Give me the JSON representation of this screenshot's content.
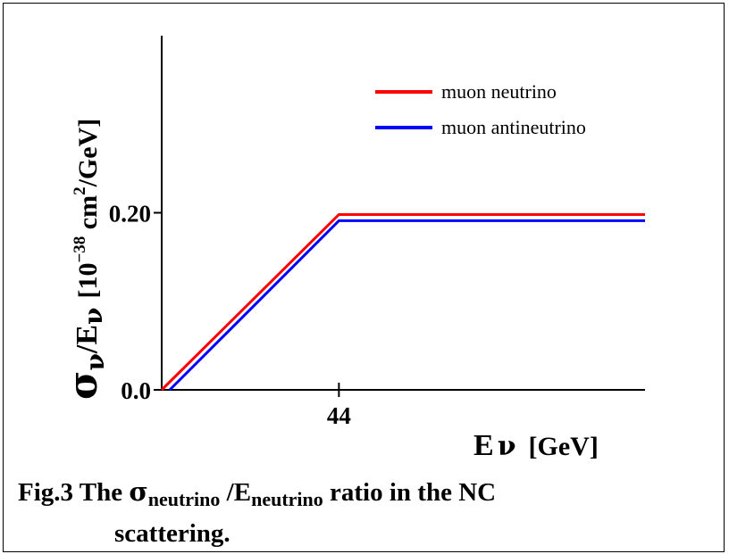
{
  "chart_data": {
    "type": "line",
    "xlabel": "E",
    "xlabel_symbol": "ν",
    "xlabel_unit": "[GeV]",
    "ylabel_sigma": "σ",
    "ylabel_nu": "ν",
    "ylabel_slash": "/E",
    "ylabel_unit": "[10",
    "ylabel_exp1": "−38",
    "ylabel_mid": " cm",
    "ylabel_exp2": "2",
    "ylabel_end": "/GeV]",
    "x_ticks": [
      {
        "value": 44,
        "label": "44"
      }
    ],
    "y_ticks": [
      {
        "value": 0.0,
        "label": "0.0"
      },
      {
        "value": 0.2,
        "label": "0.20"
      }
    ],
    "xlim": [
      0,
      120
    ],
    "ylim": [
      0,
      0.4
    ],
    "grid": false,
    "legend_position": "top-right",
    "series": [
      {
        "name": "muon neutrino",
        "color": "#ff0000",
        "x": [
          0,
          44,
          120
        ],
        "y": [
          0.0,
          0.198,
          0.198
        ]
      },
      {
        "name": "muon antineutrino",
        "color": "#0000ff",
        "x": [
          2,
          44,
          120
        ],
        "y": [
          0.0,
          0.191,
          0.191
        ]
      }
    ]
  },
  "caption": {
    "prefix": "Fig.3 The ",
    "sigma": "σ",
    "sub1": "neutrino",
    "mid": " /E",
    "sub2": "neutrino",
    "suffix": " ratio in the NC",
    "line2": "scattering."
  }
}
